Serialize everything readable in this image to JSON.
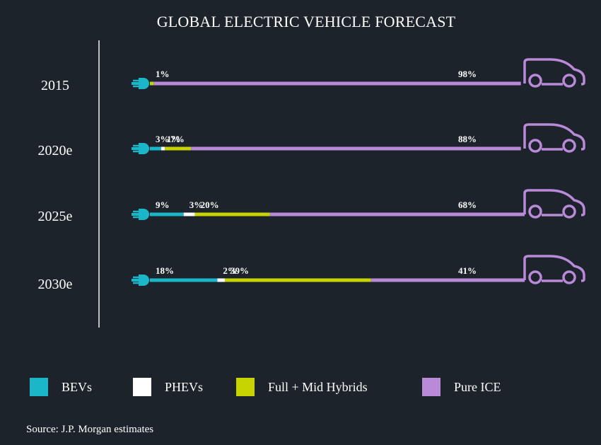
{
  "chart_data": {
    "type": "bar",
    "orientation": "horizontal-stacked",
    "title": "GLOBAL ELECTRIC VEHICLE FORECAST",
    "categories": [
      "2015",
      "2020e",
      "2025e",
      "2030e"
    ],
    "series": [
      {
        "name": "BEVs",
        "color": "#1ab7c9",
        "values": [
          0,
          3,
          9,
          18
        ],
        "labels": [
          "",
          "3%",
          "9%",
          "18%"
        ]
      },
      {
        "name": "PHEVs",
        "color": "#ffffff",
        "values": [
          0,
          1,
          3,
          2
        ],
        "labels": [
          "",
          "1%",
          "3%",
          "2%"
        ]
      },
      {
        "name": "Full + Mid Hybrids",
        "color": "#c8d400",
        "values": [
          1,
          7,
          20,
          39
        ],
        "labels": [
          "1%",
          "7%",
          "20%",
          "39%"
        ]
      },
      {
        "name": "Pure ICE",
        "color": "#b98ad8",
        "values": [
          98,
          88,
          68,
          41
        ],
        "labels": [
          "98%",
          "88%",
          "68%",
          "41%"
        ]
      }
    ],
    "xlim": [
      0,
      100
    ],
    "unit": "%",
    "source": "Source: J.P. Morgan estimates"
  }
}
